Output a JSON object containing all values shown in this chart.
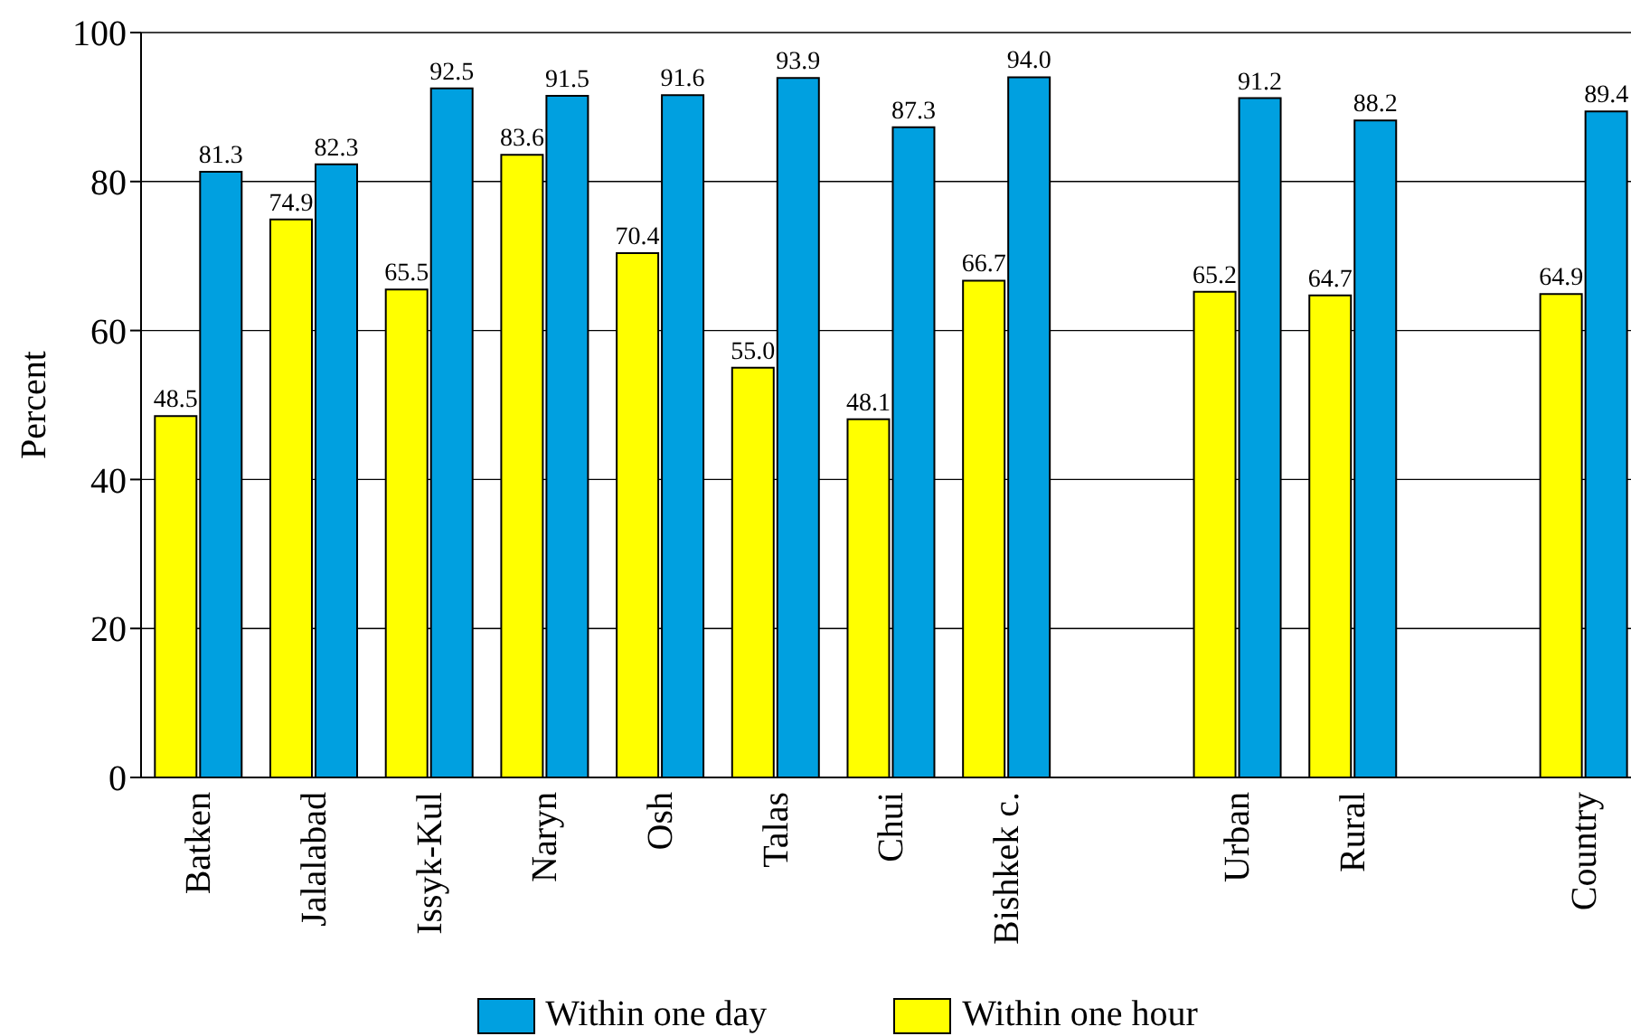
{
  "chart_data": {
    "type": "bar",
    "ylabel": "Percent",
    "categories": [
      "Batken",
      "Jalalabad",
      "Issyk-Kul",
      "Naryn",
      "Osh",
      "Talas",
      "Chui",
      "Bishkek c.",
      null,
      "Urban",
      "Rural",
      null,
      "Country"
    ],
    "series": [
      {
        "name": "Within one hour",
        "color": "#ffff00",
        "values": [
          48.5,
          74.9,
          65.5,
          83.6,
          70.4,
          55,
          48.1,
          66.7,
          null,
          65.2,
          64.7,
          null,
          64.9
        ],
        "value_labels": [
          "48.5",
          "74.9",
          "65.5",
          "83.6",
          "70.4",
          "55.0",
          "48.1",
          "66.7",
          null,
          "65.2",
          "64.7",
          null,
          "64.9"
        ]
      },
      {
        "name": "Within one day",
        "color": "#00a0e0",
        "values": [
          81.3,
          82.3,
          92.5,
          91.5,
          91.6,
          93.9,
          87.3,
          94,
          null,
          91.2,
          88.2,
          null,
          89.4
        ],
        "value_labels": [
          "81.3",
          "82.3",
          "92.5",
          "91.5",
          "91.6",
          "93.9",
          "87.3",
          "94.0",
          null,
          "91.2",
          "88.2",
          null,
          "89.4"
        ]
      }
    ],
    "ylim": [
      0,
      100
    ],
    "yticks": [
      0,
      20,
      40,
      60,
      80,
      100
    ],
    "grid": "y",
    "legend": "bottom"
  }
}
